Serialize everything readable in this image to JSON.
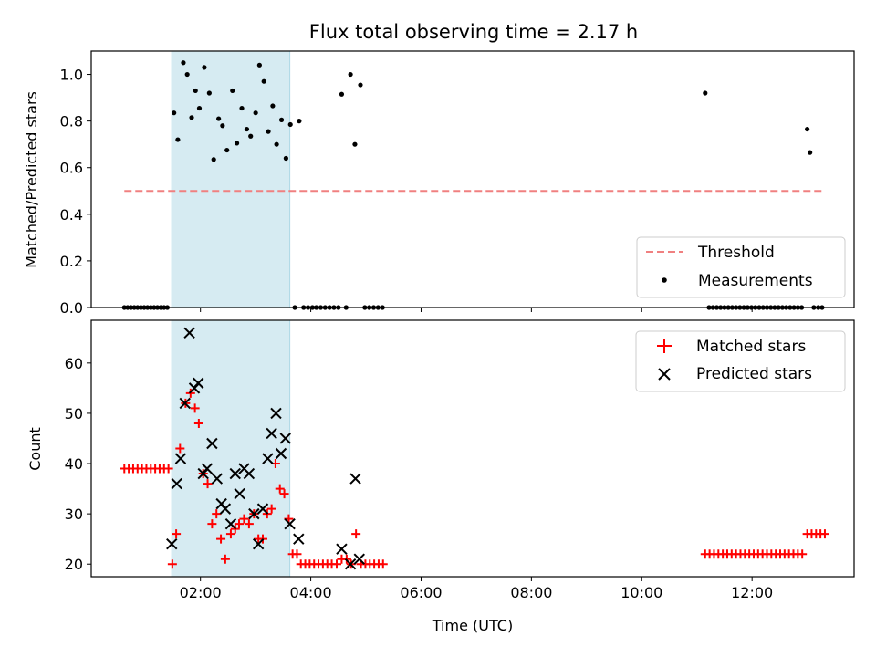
{
  "chart_data": [
    {
      "type": "scatter",
      "title": "Flux total observing time = 2.17 h",
      "ylabel": "Matched/Predicted stars",
      "xlabel": "",
      "x_unit": "hours UTC",
      "xlim": [
        0.02,
        13.85
      ],
      "ylim": [
        0.0,
        1.1
      ],
      "yticks": [
        0.0,
        0.2,
        0.4,
        0.6,
        0.8,
        1.0
      ],
      "ytick_labels": [
        "0.0",
        "0.2",
        "0.4",
        "0.6",
        "0.8",
        "1.0"
      ],
      "shaded_interval": [
        1.48,
        3.62
      ],
      "shade_color": "#add8e6",
      "legend_position": "lower-right",
      "threshold": {
        "name": "Threshold",
        "value": 0.5,
        "x_range": [
          0.62,
          13.3
        ],
        "color": "#f08080",
        "style": "dashed"
      },
      "series": [
        {
          "name": "Measurements",
          "color": "#000000",
          "marker": "dot",
          "x": [
            0.62,
            0.68,
            0.74,
            0.8,
            0.86,
            0.92,
            0.98,
            1.04,
            1.1,
            1.16,
            1.22,
            1.28,
            1.34,
            1.4,
            1.52,
            1.59,
            1.69,
            1.76,
            1.84,
            1.91,
            1.98,
            2.07,
            2.16,
            2.24,
            2.33,
            2.4,
            2.48,
            2.58,
            2.66,
            2.75,
            2.84,
            2.91,
            3.0,
            3.07,
            3.15,
            3.23,
            3.31,
            3.38,
            3.47,
            3.55,
            3.63,
            3.71,
            3.79,
            3.87,
            3.95,
            4.03,
            4.1,
            4.18,
            4.26,
            4.34,
            4.42,
            4.5,
            4.56,
            4.64,
            4.72,
            4.8,
            4.9,
            4.98,
            5.06,
            5.14,
            5.22,
            5.3,
            11.15,
            11.22,
            11.29,
            11.36,
            11.43,
            11.5,
            11.57,
            11.64,
            11.71,
            11.78,
            11.85,
            11.92,
            11.99,
            12.06,
            12.13,
            12.2,
            12.27,
            12.34,
            12.41,
            12.48,
            12.55,
            12.62,
            12.69,
            12.76,
            12.83,
            12.9,
            13.0,
            13.05,
            13.12,
            13.2,
            13.27
          ],
          "y": [
            0,
            0,
            0,
            0,
            0,
            0,
            0,
            0,
            0,
            0,
            0,
            0,
            0,
            0,
            0.835,
            0.72,
            1.05,
            1.0,
            0.815,
            0.93,
            0.855,
            1.03,
            0.92,
            0.635,
            0.81,
            0.78,
            0.675,
            0.93,
            0.705,
            0.855,
            0.765,
            0.735,
            0.835,
            1.04,
            0.97,
            0.755,
            0.865,
            0.7,
            0.805,
            0.64,
            0.785,
            0,
            0.8,
            0,
            0,
            0,
            0,
            0,
            0,
            0,
            0,
            0,
            0.915,
            0,
            1.0,
            0.7,
            0.955,
            0,
            0,
            0,
            0,
            0,
            0.92,
            0,
            0,
            0,
            0,
            0,
            0,
            0,
            0,
            0,
            0,
            0,
            0,
            0,
            0,
            0,
            0,
            0,
            0,
            0,
            0,
            0,
            0,
            0,
            0,
            0,
            0.765,
            0.665,
            0,
            0,
            0
          ]
        }
      ]
    },
    {
      "type": "scatter",
      "title": "",
      "ylabel": "Count",
      "xlabel": "Time (UTC)",
      "x_unit": "hours UTC",
      "xlim": [
        0.02,
        13.85
      ],
      "ylim": [
        17.5,
        68.5
      ],
      "yticks": [
        20,
        30,
        40,
        50,
        60
      ],
      "ytick_labels": [
        "20",
        "30",
        "40",
        "50",
        "60"
      ],
      "xticks": [
        2,
        4,
        6,
        8,
        10,
        12
      ],
      "xtick_labels": [
        "02:00",
        "04:00",
        "06:00",
        "08:00",
        "10:00",
        "12:00"
      ],
      "shaded_interval": [
        1.48,
        3.62
      ],
      "shade_color": "#add8e6",
      "legend_position": "top-right",
      "series": [
        {
          "name": "Matched stars",
          "color": "#ff0000",
          "marker": "plus",
          "x": [
            0.62,
            0.7,
            0.78,
            0.86,
            0.94,
            1.02,
            1.1,
            1.18,
            1.26,
            1.34,
            1.42,
            1.49,
            1.56,
            1.63,
            1.73,
            1.82,
            1.9,
            1.97,
            2.05,
            2.13,
            2.21,
            2.29,
            2.37,
            2.45,
            2.55,
            2.63,
            2.7,
            2.79,
            2.88,
            2.97,
            3.05,
            3.13,
            3.21,
            3.29,
            3.36,
            3.44,
            3.52,
            3.6,
            3.67,
            3.75,
            3.82,
            3.9,
            3.98,
            4.06,
            4.14,
            4.22,
            4.3,
            4.38,
            4.47,
            4.56,
            4.65,
            4.73,
            4.82,
            4.91,
            4.99,
            5.07,
            5.15,
            5.23,
            5.31,
            11.15,
            11.23,
            11.31,
            11.39,
            11.47,
            11.55,
            11.63,
            11.71,
            11.79,
            11.87,
            11.95,
            12.03,
            12.11,
            12.19,
            12.27,
            12.35,
            12.43,
            12.51,
            12.59,
            12.67,
            12.75,
            12.83,
            12.91,
            13.0,
            13.08,
            13.16,
            13.24,
            13.32
          ],
          "y": [
            39,
            39,
            39,
            39,
            39,
            39,
            39,
            39,
            39,
            39,
            39,
            20,
            26,
            43,
            52,
            54,
            51,
            48,
            38,
            36,
            28,
            30,
            25,
            21,
            26,
            27,
            28,
            29,
            28,
            30,
            25,
            25,
            30,
            31,
            40,
            35,
            34,
            29,
            22,
            22,
            20,
            20,
            20,
            20,
            20,
            20,
            20,
            20,
            20,
            21,
            21,
            20,
            26,
            20,
            20,
            20,
            20,
            20,
            20,
            22,
            22,
            22,
            22,
            22,
            22,
            22,
            22,
            22,
            22,
            22,
            22,
            22,
            22,
            22,
            22,
            22,
            22,
            22,
            22,
            22,
            22,
            22,
            26,
            26,
            26,
            26,
            26
          ]
        },
        {
          "name": "Predicted stars",
          "color": "#000000",
          "marker": "x",
          "x": [
            1.48,
            1.57,
            1.64,
            1.72,
            1.8,
            1.89,
            1.96,
            2.05,
            2.12,
            2.21,
            2.3,
            2.38,
            2.45,
            2.55,
            2.63,
            2.71,
            2.79,
            2.88,
            2.97,
            3.05,
            3.13,
            3.22,
            3.29,
            3.37,
            3.46,
            3.54,
            3.62,
            3.78,
            4.56,
            4.72,
            4.81,
            4.88
          ],
          "y": [
            24,
            36,
            41,
            52,
            66,
            55,
            56,
            38,
            39,
            44,
            37,
            32,
            31,
            28,
            38,
            34,
            39,
            38,
            30,
            24,
            31,
            41,
            46,
            50,
            42,
            45,
            28,
            25,
            23,
            20,
            37,
            21
          ]
        }
      ]
    }
  ]
}
